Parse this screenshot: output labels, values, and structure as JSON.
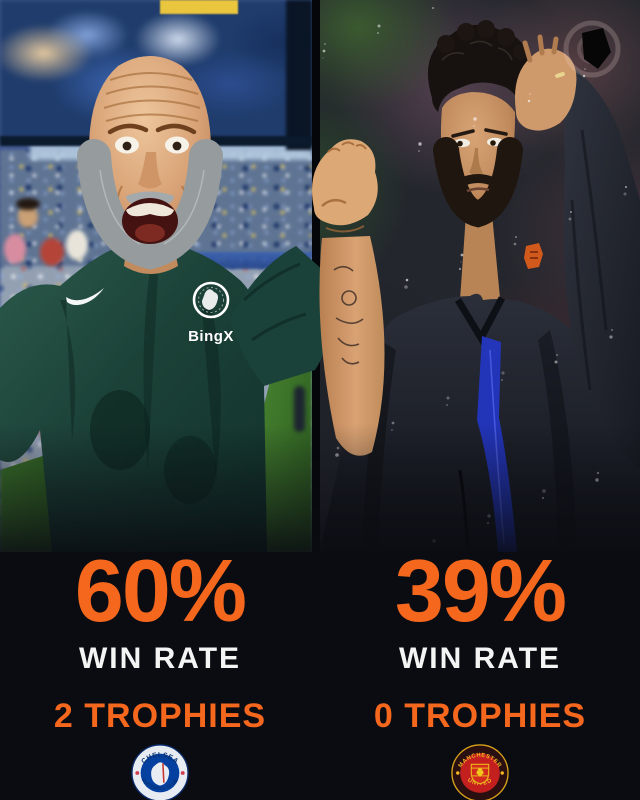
{
  "panels": {
    "left": {
      "win_rate": "60%",
      "win_rate_label": "WIN RATE",
      "trophies_label": "2 TROPHIES",
      "shirt_sponsor": "BingX",
      "badge": {
        "top": "CHELSEA",
        "bottom": "FOOTBALL CLUB"
      }
    },
    "right": {
      "win_rate": "39%",
      "win_rate_label": "WIN RATE",
      "trophies_label": "0 TROPHIES",
      "badge": {
        "top": "MANCHESTER",
        "bottom": "UNITED"
      }
    }
  },
  "colors": {
    "accent_orange": "#F4671D",
    "text_white": "#F4F4F4",
    "background": "#0A0C12"
  }
}
